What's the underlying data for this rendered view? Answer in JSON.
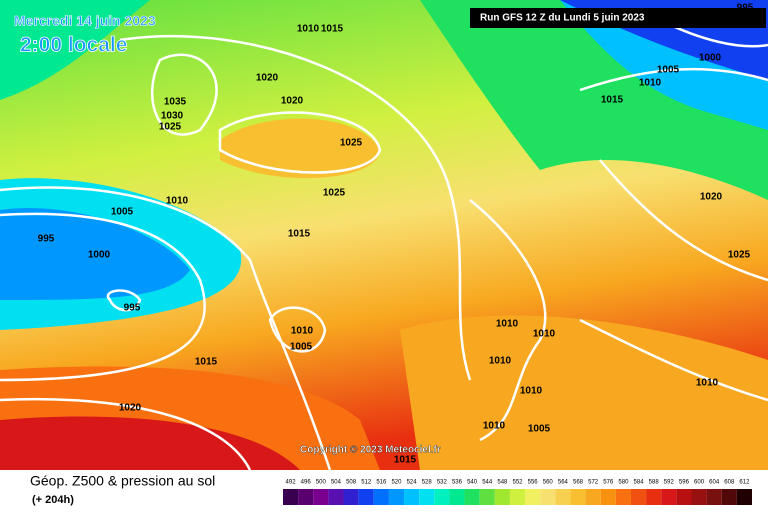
{
  "header": {
    "date": "Mercredi 14 juin 2023",
    "time": "2:00 locale",
    "run": "Run GFS 12 Z du Lundi 5 juin 2023"
  },
  "map": {
    "isobar_labels": [
      1010,
      1015,
      1020,
      1020,
      1035,
      1030,
      1025,
      1025,
      1025,
      1010,
      1005,
      1015,
      995,
      1000,
      995,
      1010,
      1005,
      1015,
      1020,
      1010,
      1010,
      1010,
      1010,
      1010,
      1005,
      1015,
      1005,
      1010,
      1015,
      1000,
      995,
      1020,
      1025,
      1010
    ],
    "copyright": "Copyright © 2023 Meteociel.fr"
  },
  "footer": {
    "title": "Géop. Z500 & pression au sol",
    "lead": "(+ 204h)"
  },
  "scale": {
    "values": [
      492,
      496,
      500,
      504,
      508,
      512,
      516,
      520,
      524,
      528,
      532,
      536,
      540,
      544,
      548,
      552,
      556,
      560,
      564,
      568,
      572,
      576,
      580,
      584,
      588,
      592,
      596,
      600,
      604,
      608,
      612
    ],
    "colors": [
      "#3a0050",
      "#5a006e",
      "#7a0090",
      "#5a10b0",
      "#3020d0",
      "#1040f0",
      "#0070ff",
      "#0098ff",
      "#00c0ff",
      "#00e0f0",
      "#00f0c0",
      "#00e890",
      "#20e060",
      "#60e040",
      "#a0e830",
      "#d0f040",
      "#f0f060",
      "#f8e070",
      "#f8d050",
      "#f8c030",
      "#f8a820",
      "#f89010",
      "#f87010",
      "#f05010",
      "#e83010",
      "#d81818",
      "#b81010",
      "#981010",
      "#781010",
      "#500808",
      "#200000"
    ]
  }
}
